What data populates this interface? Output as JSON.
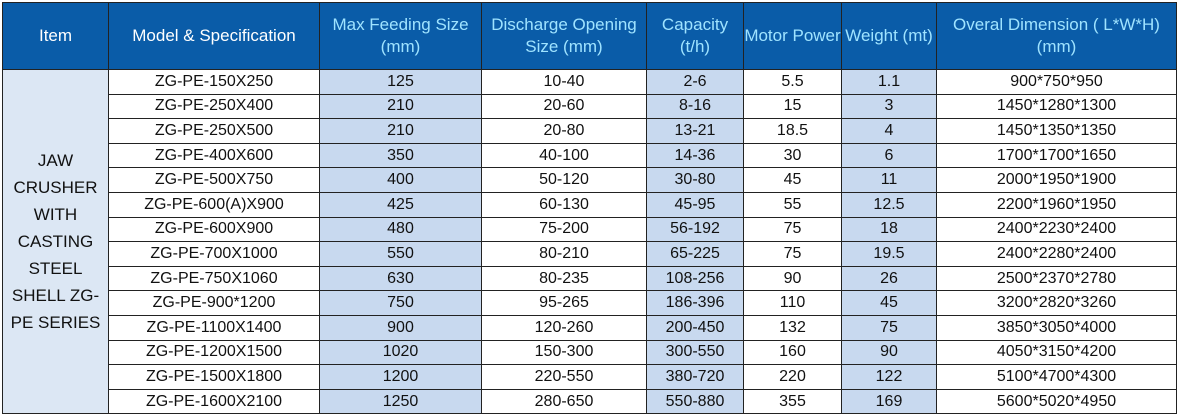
{
  "header": [
    "Item",
    "Model & Specification",
    "Max Feeding Size (mm)",
    "Discharge Opening Size (mm)",
    "Capacity (t/h)",
    "Motor Power",
    "Weight (mt)",
    "Overal Dimension ( L*W*H) (mm)"
  ],
  "item_label": "JAW CRUSHER WITH CASTING STEEL SHELL ZG-PE SERIES",
  "rows": [
    [
      "ZG-PE-150X250",
      125,
      "10-40",
      "2-6",
      5.5,
      1.1,
      "900*750*950"
    ],
    [
      "ZG-PE-250X400",
      210,
      "20-60",
      "8-16",
      15,
      3,
      "1450*1280*1300"
    ],
    [
      "ZG-PE-250X500",
      210,
      "20-80",
      "13-21",
      18.5,
      4,
      "1450*1350*1350"
    ],
    [
      "ZG-PE-400X600",
      350,
      "40-100",
      "14-36",
      30,
      6,
      "1700*1700*1650"
    ],
    [
      "ZG-PE-500X750",
      400,
      "50-120",
      "30-80",
      45,
      11,
      "2000*1950*1900"
    ],
    [
      "ZG-PE-600(A)X900",
      425,
      "60-130",
      "45-95",
      55,
      12.5,
      "2200*1960*1950"
    ],
    [
      "ZG-PE-600X900",
      480,
      "75-200",
      "56-192",
      75,
      18,
      "2400*2230*2400"
    ],
    [
      "ZG-PE-700X1000",
      550,
      "80-210",
      "65-225",
      75,
      19.5,
      "2400*2280*2400"
    ],
    [
      "ZG-PE-750X1060",
      630,
      "80-235",
      "108-256",
      90,
      26,
      "2500*2370*2780"
    ],
    [
      "ZG-PE-900*1200",
      750,
      "95-265",
      "186-396",
      110,
      45,
      "3200*2820*3260"
    ],
    [
      "ZG-PE-1100X1400",
      900,
      "120-260",
      "200-450",
      132,
      75,
      "3850*3050*4000"
    ],
    [
      "ZG-PE-1200X1500",
      1020,
      "150-300",
      "300-550",
      160,
      90,
      "4050*3150*4200"
    ],
    [
      "ZG-PE-1500X1800",
      1200,
      "220-550",
      "380-720",
      220,
      122,
      "5100*4700*4300"
    ],
    [
      "ZG-PE-1600X2100",
      1250,
      "280-650",
      "550-880",
      355,
      169,
      "5600*5020*4950"
    ]
  ]
}
